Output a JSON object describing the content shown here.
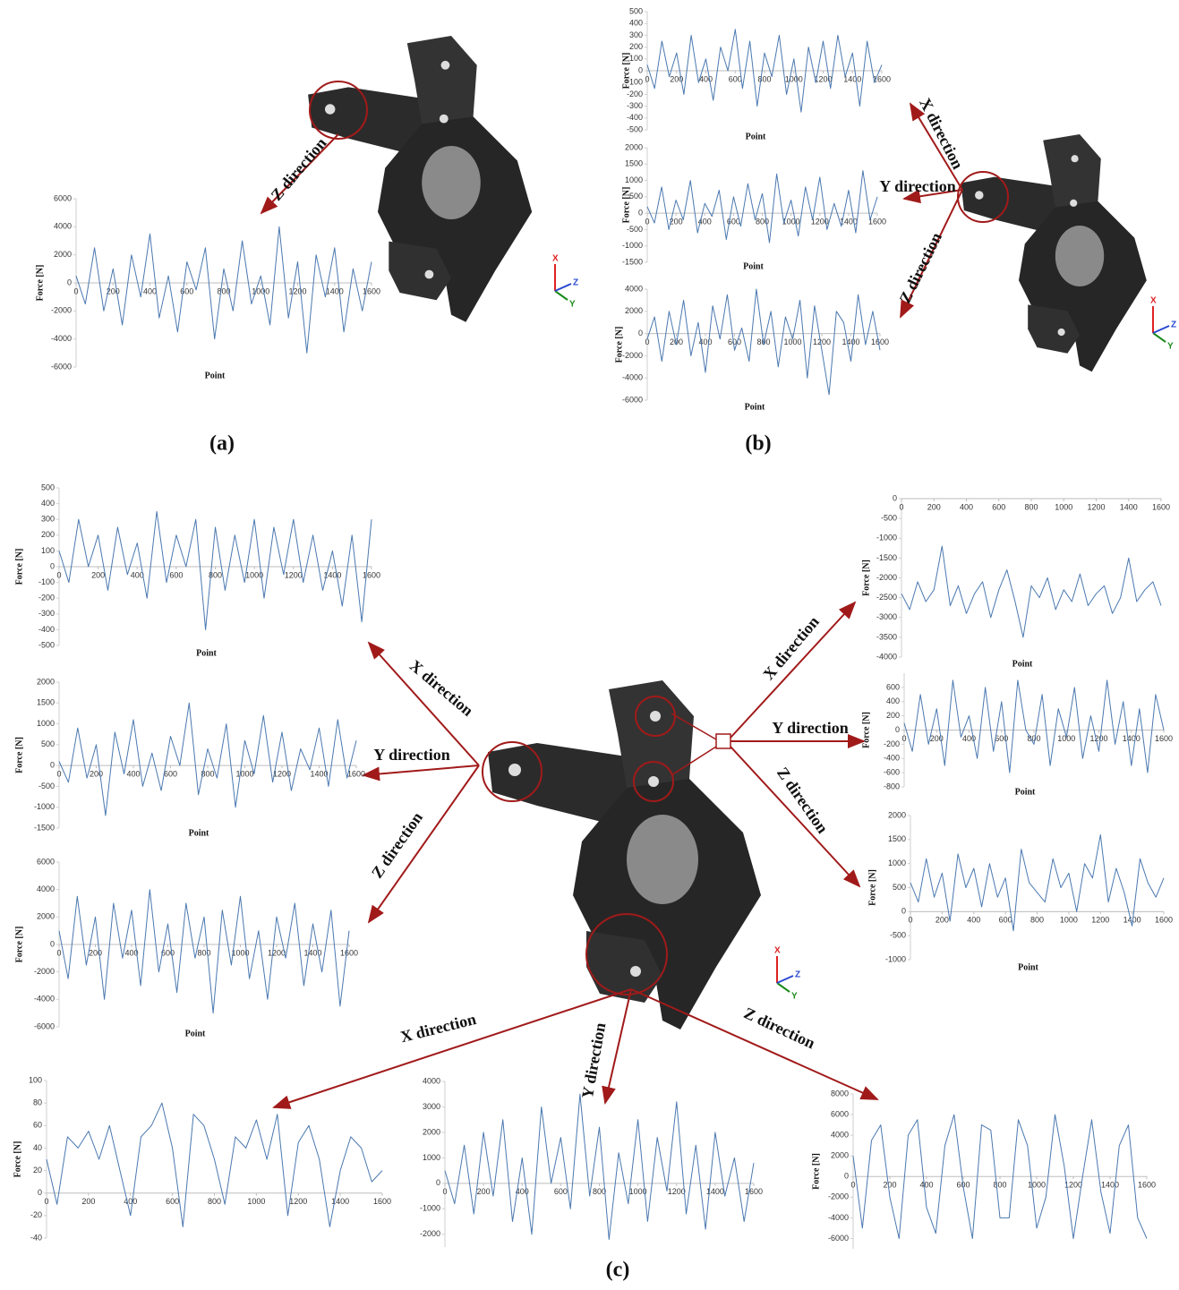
{
  "figure": {
    "panel_labels": [
      "(a)",
      "(b)",
      "(c)"
    ],
    "direction_labels": [
      "Z direction",
      "X direction",
      "Y direction",
      "Z direction",
      "X direction",
      "Y direction",
      "Z direction",
      "X direction",
      "Y direction",
      "Z direction",
      "X direction",
      "Y direction",
      "Z direction"
    ],
    "axis_icon": [
      "X",
      "Y",
      "Z"
    ]
  },
  "chart_data": [
    {
      "type": "line",
      "ylabel": "Force [N]",
      "xlabel": "Point",
      "color": "#4a78b0",
      "xlim": [
        0,
        1600
      ],
      "xticks": [
        0,
        200,
        400,
        600,
        800,
        1000,
        1200,
        1400,
        1600
      ],
      "ylim": [
        -6000,
        6000
      ],
      "yticks": [
        -6000,
        -4000,
        -2000,
        0,
        2000,
        4000,
        6000
      ],
      "x": [
        0,
        50,
        100,
        150,
        200,
        250,
        300,
        350,
        400,
        450,
        500,
        550,
        600,
        650,
        700,
        750,
        800,
        850,
        900,
        950,
        1000,
        1050,
        1100,
        1150,
        1200,
        1250,
        1300,
        1350,
        1400,
        1450,
        1500,
        1550,
        1600
      ],
      "values": [
        500,
        -1500,
        2500,
        -2000,
        1000,
        -3000,
        2000,
        -1000,
        3500,
        -2500,
        500,
        -3500,
        1500,
        -500,
        2500,
        -4000,
        1000,
        -2000,
        3000,
        -1500,
        500,
        -3000,
        4000,
        -2500,
        1500,
        -5000,
        2000,
        -1000,
        2500,
        -3500,
        1000,
        -2000,
        1500
      ]
    },
    {
      "type": "line",
      "ylabel": "Force [N]",
      "xlabel": "Point",
      "color": "#4a78b0",
      "xlim": [
        0,
        1600
      ],
      "xticks": [
        0,
        200,
        400,
        600,
        800,
        1000,
        1200,
        1400,
        1600
      ],
      "ylim": [
        -500,
        500
      ],
      "yticks": [
        -500,
        -400,
        -300,
        -200,
        -100,
        0,
        100,
        200,
        300,
        400,
        500
      ],
      "x": [
        0,
        50,
        100,
        150,
        200,
        250,
        300,
        350,
        400,
        450,
        500,
        550,
        600,
        650,
        700,
        750,
        800,
        850,
        900,
        950,
        1000,
        1050,
        1100,
        1150,
        1200,
        1250,
        1300,
        1350,
        1400,
        1450,
        1500,
        1550,
        1600
      ],
      "values": [
        50,
        -150,
        250,
        -50,
        150,
        -200,
        300,
        -100,
        100,
        -250,
        200,
        0,
        350,
        -150,
        250,
        -300,
        150,
        -50,
        300,
        -200,
        100,
        -350,
        200,
        -100,
        250,
        -150,
        300,
        -50,
        150,
        -300,
        250,
        -100,
        50
      ]
    },
    {
      "type": "line",
      "ylabel": "Force [N]",
      "xlabel": "Point",
      "color": "#4a78b0",
      "xlim": [
        0,
        1600
      ],
      "xticks": [
        0,
        200,
        400,
        600,
        800,
        1000,
        1200,
        1400,
        1600
      ],
      "ylim": [
        -1500,
        2000
      ],
      "yticks": [
        -1500,
        -1000,
        -500,
        0,
        500,
        1000,
        1500,
        2000
      ],
      "x": [
        0,
        50,
        100,
        150,
        200,
        250,
        300,
        350,
        400,
        450,
        500,
        550,
        600,
        650,
        700,
        750,
        800,
        850,
        900,
        950,
        1000,
        1050,
        1100,
        1150,
        1200,
        1250,
        1300,
        1350,
        1400,
        1450,
        1500,
        1550,
        1600
      ],
      "values": [
        200,
        -300,
        800,
        -500,
        400,
        -200,
        1000,
        -600,
        300,
        -100,
        700,
        -800,
        500,
        -400,
        900,
        -200,
        600,
        -900,
        1200,
        -300,
        400,
        -700,
        800,
        -200,
        1100,
        -500,
        300,
        -400,
        700,
        -600,
        1300,
        -200,
        500
      ]
    },
    {
      "type": "line",
      "ylabel": "Force [N]",
      "xlabel": "Point",
      "color": "#4a78b0",
      "xlim": [
        0,
        1600
      ],
      "xticks": [
        0,
        200,
        400,
        600,
        800,
        1000,
        1200,
        1400,
        1600
      ],
      "ylim": [
        -6000,
        4000
      ],
      "yticks": [
        -6000,
        -4000,
        -2000,
        0,
        2000,
        4000
      ],
      "x": [
        0,
        50,
        100,
        150,
        200,
        250,
        300,
        350,
        400,
        450,
        500,
        550,
        600,
        650,
        700,
        750,
        800,
        850,
        900,
        950,
        1000,
        1050,
        1100,
        1150,
        1200,
        1250,
        1300,
        1350,
        1400,
        1450,
        1500,
        1550,
        1600
      ],
      "values": [
        -500,
        1500,
        -2500,
        2000,
        -1000,
        3000,
        -2000,
        1000,
        -3500,
        2500,
        -500,
        3500,
        -1500,
        500,
        -2500,
        4000,
        -1000,
        2000,
        -3000,
        1500,
        -500,
        3000,
        -4000,
        2500,
        -1500,
        -5500,
        2000,
        1000,
        -2500,
        3500,
        -1000,
        2000,
        -1500
      ]
    },
    {
      "type": "line",
      "ylabel": "Force [N]",
      "xlabel": "Point",
      "color": "#4a78b0",
      "xlim": [
        0,
        1600
      ],
      "xticks": [
        0,
        200,
        400,
        600,
        800,
        1000,
        1200,
        1400,
        1600
      ],
      "ylim": [
        -500,
        500
      ],
      "yticks": [
        -500,
        -400,
        -300,
        -200,
        -100,
        0,
        100,
        200,
        300,
        400,
        500
      ],
      "x": [
        0,
        50,
        100,
        150,
        200,
        250,
        300,
        350,
        400,
        450,
        500,
        550,
        600,
        650,
        700,
        750,
        800,
        850,
        900,
        950,
        1000,
        1050,
        1100,
        1150,
        1200,
        1250,
        1300,
        1350,
        1400,
        1450,
        1500,
        1550,
        1600
      ],
      "values": [
        100,
        -100,
        300,
        0,
        200,
        -150,
        250,
        -50,
        150,
        -200,
        350,
        -100,
        200,
        0,
        300,
        -400,
        250,
        -150,
        200,
        -100,
        300,
        -200,
        250,
        -50,
        300,
        -100,
        200,
        -150,
        100,
        -250,
        200,
        -350,
        300
      ]
    },
    {
      "type": "line",
      "ylabel": "Force [N]",
      "xlabel": "Point",
      "color": "#4a78b0",
      "xlim": [
        0,
        1600
      ],
      "xticks": [
        0,
        200,
        400,
        600,
        800,
        1000,
        1200,
        1400,
        1600
      ],
      "ylim": [
        -1500,
        2000
      ],
      "yticks": [
        -1500,
        -1000,
        -500,
        0,
        500,
        1000,
        1500,
        2000
      ],
      "x": [
        0,
        50,
        100,
        150,
        200,
        250,
        300,
        350,
        400,
        450,
        500,
        550,
        600,
        650,
        700,
        750,
        800,
        850,
        900,
        950,
        1000,
        1050,
        1100,
        1150,
        1200,
        1250,
        1300,
        1350,
        1400,
        1450,
        1500,
        1550,
        1600
      ],
      "values": [
        100,
        -400,
        900,
        -300,
        500,
        -1200,
        800,
        -200,
        1100,
        -500,
        300,
        -600,
        700,
        0,
        1500,
        -700,
        400,
        -300,
        1000,
        -1000,
        600,
        -200,
        1200,
        -400,
        800,
        -600,
        400,
        -100,
        900,
        -500,
        1100,
        -300,
        600
      ]
    },
    {
      "type": "line",
      "ylabel": "Force [N]",
      "xlabel": "Point",
      "color": "#4a78b0",
      "xlim": [
        0,
        1600
      ],
      "xticks": [
        0,
        200,
        400,
        600,
        800,
        1000,
        1200,
        1400,
        1600
      ],
      "ylim": [
        -6000,
        6000
      ],
      "yticks": [
        -6000,
        -4000,
        -2000,
        0,
        2000,
        4000,
        6000
      ],
      "x": [
        0,
        50,
        100,
        150,
        200,
        250,
        300,
        350,
        400,
        450,
        500,
        550,
        600,
        650,
        700,
        750,
        800,
        850,
        900,
        950,
        1000,
        1050,
        1100,
        1150,
        1200,
        1250,
        1300,
        1350,
        1400,
        1450,
        1500,
        1550,
        1600
      ],
      "values": [
        1000,
        -2500,
        3500,
        -1500,
        2000,
        -4000,
        3000,
        -1000,
        2500,
        -3000,
        4000,
        -2000,
        1500,
        -3500,
        3000,
        -1000,
        2000,
        -5000,
        2500,
        -1500,
        3500,
        -2500,
        1000,
        -4000,
        2000,
        -1000,
        3000,
        -3000,
        1500,
        -2000,
        2500,
        -4500,
        1000
      ]
    },
    {
      "type": "line",
      "ylabel": "Force [N]",
      "xlabel": "Point",
      "color": "#4a78b0",
      "xlim": [
        0,
        1600
      ],
      "xticks": [
        0,
        200,
        400,
        600,
        800,
        1000,
        1200,
        1400,
        1600
      ],
      "ylim": [
        -4000,
        0
      ],
      "yticks": [
        -4000,
        -3500,
        -3000,
        -2500,
        -2000,
        -1500,
        -1000,
        -500,
        0
      ],
      "x": [
        0,
        50,
        100,
        150,
        200,
        250,
        300,
        350,
        400,
        450,
        500,
        550,
        600,
        650,
        700,
        750,
        800,
        850,
        900,
        950,
        1000,
        1050,
        1100,
        1150,
        1200,
        1250,
        1300,
        1350,
        1400,
        1450,
        1500,
        1550,
        1600
      ],
      "values": [
        -2400,
        -2800,
        -2100,
        -2600,
        -2300,
        -1200,
        -2700,
        -2200,
        -2900,
        -2400,
        -2100,
        -3000,
        -2300,
        -1800,
        -2600,
        -3500,
        -2200,
        -2500,
        -2000,
        -2800,
        -2300,
        -2600,
        -1900,
        -2700,
        -2400,
        -2200,
        -2900,
        -2500,
        -1500,
        -2600,
        -2300,
        -2100,
        -2700
      ]
    },
    {
      "type": "line",
      "ylabel": "Force [N]",
      "xlabel": "Point",
      "color": "#4a78b0",
      "xlim": [
        0,
        1600
      ],
      "xticks": [
        0,
        200,
        400,
        600,
        800,
        1000,
        1200,
        1400,
        1600
      ],
      "ylim": [
        -800,
        800
      ],
      "yticks": [
        -800,
        -600,
        -400,
        -200,
        0,
        200,
        400,
        600
      ],
      "x": [
        0,
        50,
        100,
        150,
        200,
        250,
        300,
        350,
        400,
        450,
        500,
        550,
        600,
        650,
        700,
        750,
        800,
        850,
        900,
        950,
        1000,
        1050,
        1100,
        1150,
        1200,
        1250,
        1300,
        1350,
        1400,
        1450,
        1500,
        1550,
        1600
      ],
      "values": [
        100,
        -300,
        500,
        -200,
        300,
        -500,
        700,
        -100,
        200,
        -400,
        600,
        -300,
        400,
        -600,
        700,
        0,
        -200,
        500,
        -500,
        300,
        -100,
        600,
        -400,
        200,
        -300,
        700,
        -200,
        400,
        -500,
        300,
        -600,
        500,
        0
      ]
    },
    {
      "type": "line",
      "ylabel": "Force [N]",
      "xlabel": "Point",
      "color": "#4a78b0",
      "xlim": [
        0,
        1600
      ],
      "xticks": [
        0,
        200,
        400,
        600,
        800,
        1000,
        1200,
        1400,
        1600
      ],
      "ylim": [
        -1000,
        2000
      ],
      "yticks": [
        -1000,
        -500,
        0,
        500,
        1000,
        1500,
        2000
      ],
      "x": [
        0,
        50,
        100,
        150,
        200,
        250,
        300,
        350,
        400,
        450,
        500,
        550,
        600,
        650,
        700,
        750,
        800,
        850,
        900,
        950,
        1000,
        1050,
        1100,
        1150,
        1200,
        1250,
        1300,
        1350,
        1400,
        1450,
        1500,
        1550,
        1600
      ],
      "values": [
        600,
        200,
        1100,
        300,
        800,
        -200,
        1200,
        500,
        900,
        100,
        1000,
        300,
        700,
        -400,
        1300,
        600,
        400,
        200,
        1100,
        500,
        800,
        0,
        1000,
        700,
        1600,
        200,
        900,
        400,
        -300,
        1100,
        600,
        300,
        700
      ]
    },
    {
      "type": "line",
      "ylabel": "Force [N]",
      "color": "#4a78b0",
      "xlim": [
        0,
        1600
      ],
      "xticks": [
        0,
        200,
        400,
        600,
        800,
        1000,
        1200,
        1400,
        1600
      ],
      "ylim": [
        -40,
        100
      ],
      "yticks": [
        -40,
        -20,
        0,
        20,
        40,
        60,
        80,
        100
      ],
      "x": [
        0,
        50,
        100,
        150,
        200,
        250,
        300,
        350,
        400,
        450,
        500,
        550,
        600,
        650,
        700,
        750,
        800,
        850,
        900,
        950,
        1000,
        1050,
        1100,
        1150,
        1200,
        1250,
        1300,
        1350,
        1400,
        1450,
        1500,
        1550,
        1600
      ],
      "values": [
        30,
        -10,
        50,
        40,
        55,
        30,
        60,
        20,
        -20,
        50,
        60,
        80,
        40,
        -30,
        70,
        60,
        30,
        -10,
        50,
        40,
        65,
        30,
        70,
        -20,
        45,
        60,
        30,
        -30,
        20,
        50,
        40,
        10,
        20
      ]
    },
    {
      "type": "line",
      "color": "#4a78b0",
      "xlim": [
        0,
        1600
      ],
      "xticks": [
        0,
        200,
        400,
        600,
        800,
        1000,
        1200,
        1400,
        1600
      ],
      "ylim": [
        -2500,
        4000
      ],
      "yticks": [
        -2000,
        -1000,
        0,
        1000,
        2000,
        3000,
        4000
      ],
      "x": [
        0,
        50,
        100,
        150,
        200,
        250,
        300,
        350,
        400,
        450,
        500,
        550,
        600,
        650,
        700,
        750,
        800,
        850,
        900,
        950,
        1000,
        1050,
        1100,
        1150,
        1200,
        1250,
        1300,
        1350,
        1400,
        1450,
        1500,
        1550,
        1600
      ],
      "values": [
        500,
        -800,
        1500,
        -1200,
        2000,
        -500,
        2500,
        -1500,
        1000,
        -2000,
        3000,
        0,
        1800,
        -1000,
        3500,
        -500,
        2200,
        -2200,
        1200,
        -800,
        2500,
        -1500,
        1800,
        -300,
        3200,
        -1200,
        1500,
        -1800,
        2000,
        -500,
        1000,
        -1500,
        800
      ]
    },
    {
      "type": "line",
      "ylabel": "Force [N]",
      "color": "#4a78b0",
      "xlim": [
        0,
        1600
      ],
      "xticks": [
        0,
        200,
        400,
        600,
        800,
        1000,
        1200,
        1400,
        1600
      ],
      "ylim": [
        -7000,
        8000
      ],
      "yticks": [
        -6000,
        -4000,
        -2000,
        0,
        2000,
        4000,
        6000,
        8000
      ],
      "x": [
        0,
        50,
        100,
        150,
        200,
        250,
        300,
        350,
        400,
        450,
        500,
        550,
        600,
        650,
        700,
        750,
        800,
        850,
        900,
        950,
        1000,
        1050,
        1100,
        1150,
        1200,
        1250,
        1300,
        1350,
        1400,
        1450,
        1500,
        1550,
        1600
      ],
      "values": [
        2000,
        -5000,
        3500,
        5000,
        -2000,
        -6000,
        4000,
        5500,
        -3000,
        -5500,
        3000,
        6000,
        -1000,
        -6000,
        5000,
        4500,
        -4000,
        -4000,
        5500,
        3000,
        -5000,
        -2000,
        6000,
        1000,
        -6000,
        0,
        5500,
        -1500,
        -5500,
        3000,
        5000,
        -4000,
        -6000
      ]
    }
  ]
}
